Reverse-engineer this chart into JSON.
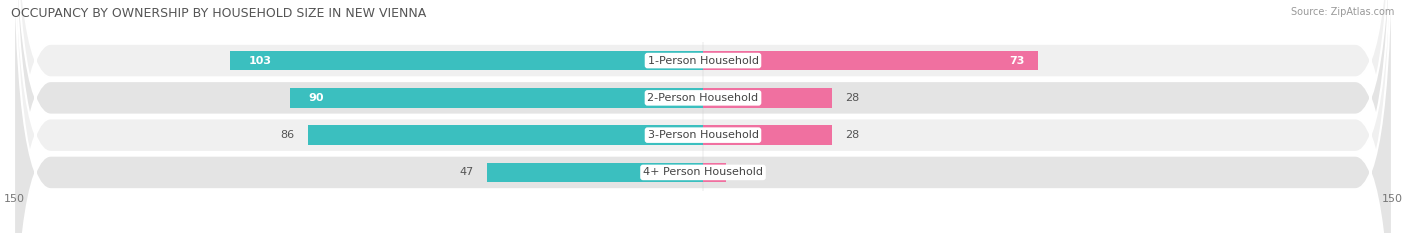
{
  "title": "OCCUPANCY BY OWNERSHIP BY HOUSEHOLD SIZE IN NEW VIENNA",
  "source": "Source: ZipAtlas.com",
  "categories": [
    "1-Person Household",
    "2-Person Household",
    "3-Person Household",
    "4+ Person Household"
  ],
  "owner_values": [
    103,
    90,
    86,
    47
  ],
  "renter_values": [
    73,
    28,
    28,
    5
  ],
  "owner_color": "#3BBFBF",
  "renter_color": "#F070A0",
  "row_bg_light": "#F0F0F0",
  "row_bg_dark": "#E4E4E4",
  "row_inner_color": "#FAFAFA",
  "axis_max": 150,
  "bar_height": 0.52,
  "figsize": [
    14.06,
    2.33
  ],
  "dpi": 100,
  "title_fontsize": 9,
  "label_fontsize": 8,
  "cat_fontsize": 8
}
